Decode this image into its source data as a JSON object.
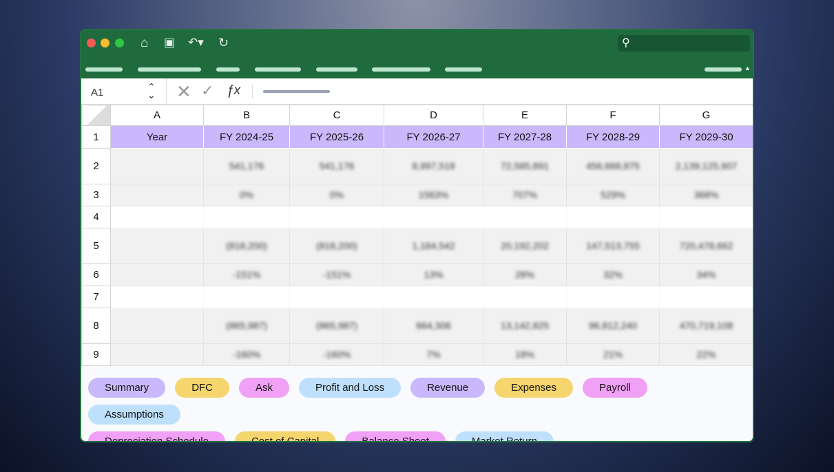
{
  "toolbar": {
    "icons": [
      "home-icon",
      "save-icon",
      "undo-icon",
      "refresh-icon"
    ]
  },
  "formula_bar": {
    "cell_ref": "A1",
    "fx": "ƒx"
  },
  "columns": [
    "A",
    "B",
    "C",
    "D",
    "E",
    "F",
    "G"
  ],
  "rows": [
    {
      "num": "1",
      "cells": [
        "Year",
        "FY 2024-25",
        "FY 2025-26",
        "FY 2026-27",
        "FY 2027-28",
        "FY 2028-29",
        "FY 2029-30"
      ]
    },
    {
      "num": "2",
      "cells": [
        "541,176",
        "541,176",
        "8,997,518",
        "72,585,891",
        "456,668,875",
        "2,139,125,907"
      ]
    },
    {
      "num": "3",
      "cells": [
        "0%",
        "0%",
        "1563%",
        "707%",
        "529%",
        "368%"
      ]
    },
    {
      "num": "4",
      "cells": []
    },
    {
      "num": "5",
      "cells": [
        "(818,200)",
        "(818,200)",
        "1,184,542",
        "20,192,202",
        "147,513,755",
        "720,478,662"
      ]
    },
    {
      "num": "6",
      "cells": [
        "-151%",
        "-151%",
        "13%",
        "28%",
        "32%",
        "34%"
      ]
    },
    {
      "num": "7",
      "cells": []
    },
    {
      "num": "8",
      "cells": [
        "(865,987)",
        "(865,987)",
        "664,306",
        "13,142,825",
        "96,812,240",
        "470,719,108"
      ]
    },
    {
      "num": "9",
      "cells": [
        "-160%",
        "-160%",
        "7%",
        "18%",
        "21%",
        "22%"
      ]
    }
  ],
  "sheet_tabs": [
    {
      "label": "Summary",
      "color": "#c9b8fb"
    },
    {
      "label": "DFC",
      "color": "#f5d56e"
    },
    {
      "label": "Ask",
      "color": "#f0a0f5"
    },
    {
      "label": "Profit and Loss",
      "color": "#bfe0fd"
    },
    {
      "label": "Revenue",
      "color": "#c9b8fb"
    },
    {
      "label": "Expenses",
      "color": "#f5d56e"
    },
    {
      "label": "Payroll",
      "color": "#f0a0f5"
    },
    {
      "label": "Assumptions",
      "color": "#bfe0fd"
    },
    {
      "label": "Depreciation Schedule",
      "color": "#f0a0f5"
    },
    {
      "label": "Cost of Capital",
      "color": "#f5d56e"
    },
    {
      "label": "Balance Sheet",
      "color": "#f0a0f5"
    },
    {
      "label": "Market Return",
      "color": "#bfe0fd"
    }
  ]
}
